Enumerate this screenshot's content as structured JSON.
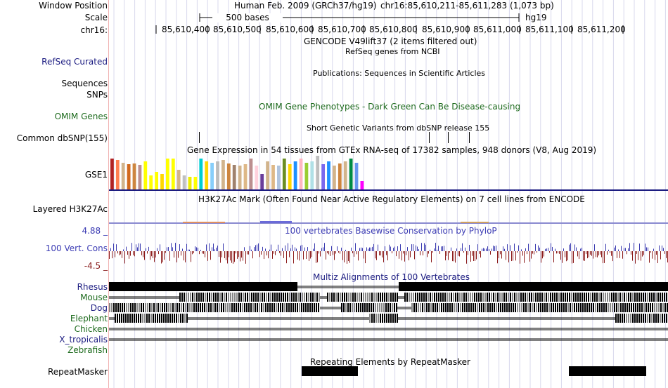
{
  "header": {
    "window_position_label": "Window Position",
    "assembly_title": "Human Feb. 2009 (GRCh37/hg19)",
    "position": "chr16:85,610,211-85,611,283 (1,073 bp)",
    "scale_label": "Scale",
    "scale_value": "500 bases",
    "scale_assembly": "hg19",
    "chrom_label": "chr16:",
    "ticks": [
      "85,610,400",
      "85,610,500",
      "85,610,600",
      "85,610,700",
      "85,610,800",
      "85,610,900",
      "85,611,000",
      "85,611,100",
      "85,611,200"
    ]
  },
  "tracks": {
    "gencode_title": "GENCODE V49lift37 (2 items filtered out)",
    "refseq_label": "RefSeq Curated",
    "refseq_title": "RefSeq genes from NCBI",
    "publications_title": "Publications: Sequences in Scientific Articles",
    "sequences_label": "Sequences",
    "snps_label": "SNPs",
    "omim_label": "OMIM Genes",
    "omim_title": "OMIM Gene Phenotypes - Dark Green Can Be Disease-causing",
    "dbsnp_label": "Common dbSNP(155)",
    "dbsnp_title": "Short Genetic Variants from dbSNP release 155",
    "gtex_title": "Gene Expression in 54 tissues from GTEx RNA-seq of 17382 samples, 948 donors (V8, Aug 2019)",
    "gtex_gene_label": "GSE1",
    "h3k27ac_label": "Layered H3K27Ac",
    "h3k27ac_title": "H3K27Ac Mark (Often Found Near Active Regulatory Elements) on 7 cell lines from ENCODE",
    "cons_max_label": "4.88 _",
    "cons_label": "100 Vert. Cons",
    "cons_min_label": "-4.5 _",
    "cons_title": "100 vertebrates Basewise Conservation by PhyloP",
    "multiz_title": "Multiz Alignments of 100 Vertebrates",
    "species": [
      "Rhesus",
      "Mouse",
      "Dog",
      "Elephant",
      "Chicken",
      "X_tropicalis",
      "Zebrafish"
    ],
    "repeat_label": "RepeatMasker",
    "repeat_title": "Repeating Elements by RepeatMasker"
  },
  "colors": {
    "gtex_bars": [
      "#b22222",
      "#ff7f50",
      "#d2b48c",
      "#d2691e",
      "#cd853f",
      "#bc8f8f",
      "#ffff00",
      "#ffff00",
      "#ffff00",
      "#ffd700",
      "#ffff00",
      "#ffff00",
      "#d2b48c",
      "#c0c0c0",
      "#eeee00",
      "#ffff00",
      "#00ced1",
      "#ffd700",
      "#87cefa",
      "#bcbcbc",
      "#d2b48c",
      "#cd853f",
      "#a0826d",
      "#d2b48c",
      "#deb887",
      "#bc8f8f",
      "#ffd1dc",
      "#6a3d9a",
      "#d2b48c",
      "#deb887",
      "#b0c4de",
      "#6b8e23",
      "#ffd700",
      "#1e90ff",
      "#ffb6c1",
      "#9acd32",
      "#b0e0e6",
      "#bebebe",
      "#7b68ee",
      "#1e90ff",
      "#d2b48c",
      "#cd853f",
      "#d2b48c",
      "#008b45",
      "#6495ed",
      "#ff00ff"
    ],
    "cons_pos": "#3a3ab0",
    "cons_neg": "#8b1a1a"
  }
}
